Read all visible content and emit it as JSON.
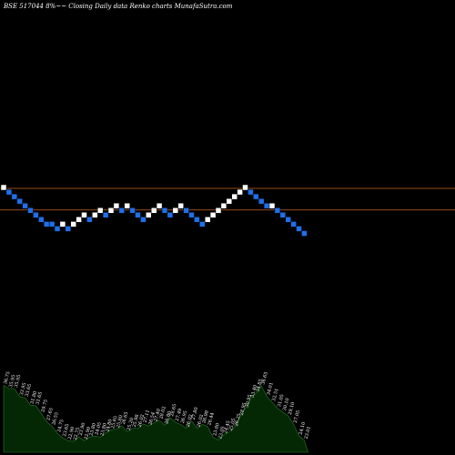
{
  "title": "BSE 517044  8%~~  Closing Daily data  Renko  charts MunafaSutra.com",
  "colors": {
    "background": "#000000",
    "up_brick": "#ffffff",
    "down_brick": "#1e6fe8",
    "line_upper": "#c8641e",
    "line_lower": "#c86428",
    "volume_fill": "#042804",
    "volume_stroke": "#2a7a2a"
  },
  "chart_data": {
    "type": "renko",
    "bricks": [
      {
        "dir": "up",
        "level": 22
      },
      {
        "dir": "down",
        "level": 21
      },
      {
        "dir": "down",
        "level": 20
      },
      {
        "dir": "down",
        "level": 19
      },
      {
        "dir": "down",
        "level": 18
      },
      {
        "dir": "down",
        "level": 17
      },
      {
        "dir": "down",
        "level": 16
      },
      {
        "dir": "down",
        "level": 15
      },
      {
        "dir": "down",
        "level": 14
      },
      {
        "dir": "down",
        "level": 14
      },
      {
        "dir": "down",
        "level": 13
      },
      {
        "dir": "up",
        "level": 14
      },
      {
        "dir": "down",
        "level": 13
      },
      {
        "dir": "up",
        "level": 14
      },
      {
        "dir": "up",
        "level": 15
      },
      {
        "dir": "up",
        "level": 16
      },
      {
        "dir": "down",
        "level": 15
      },
      {
        "dir": "up",
        "level": 16
      },
      {
        "dir": "up",
        "level": 17
      },
      {
        "dir": "down",
        "level": 16
      },
      {
        "dir": "up",
        "level": 17
      },
      {
        "dir": "up",
        "level": 18
      },
      {
        "dir": "down",
        "level": 17
      },
      {
        "dir": "up",
        "level": 18
      },
      {
        "dir": "down",
        "level": 17
      },
      {
        "dir": "down",
        "level": 16
      },
      {
        "dir": "down",
        "level": 15
      },
      {
        "dir": "up",
        "level": 16
      },
      {
        "dir": "up",
        "level": 17
      },
      {
        "dir": "up",
        "level": 18
      },
      {
        "dir": "down",
        "level": 17
      },
      {
        "dir": "down",
        "level": 16
      },
      {
        "dir": "up",
        "level": 17
      },
      {
        "dir": "up",
        "level": 18
      },
      {
        "dir": "down",
        "level": 17
      },
      {
        "dir": "down",
        "level": 16
      },
      {
        "dir": "down",
        "level": 15
      },
      {
        "dir": "down",
        "level": 14
      },
      {
        "dir": "up",
        "level": 15
      },
      {
        "dir": "up",
        "level": 16
      },
      {
        "dir": "up",
        "level": 17
      },
      {
        "dir": "up",
        "level": 18
      },
      {
        "dir": "up",
        "level": 19
      },
      {
        "dir": "up",
        "level": 20
      },
      {
        "dir": "up",
        "level": 21
      },
      {
        "dir": "up",
        "level": 22
      },
      {
        "dir": "down",
        "level": 21
      },
      {
        "dir": "down",
        "level": 20
      },
      {
        "dir": "down",
        "level": 19
      },
      {
        "dir": "down",
        "level": 18
      },
      {
        "dir": "up",
        "level": 18
      },
      {
        "dir": "down",
        "level": 17
      },
      {
        "dir": "down",
        "level": 16
      },
      {
        "dir": "down",
        "level": 15
      },
      {
        "dir": "down",
        "level": 14
      },
      {
        "dir": "down",
        "level": 13
      },
      {
        "dir": "down",
        "level": 12
      }
    ],
    "reference_lines": [
      {
        "level": 21.8
      },
      {
        "level": 17.1
      }
    ],
    "volume_labels": [
      "36.75",
      "35.95",
      "35.95",
      "33.95",
      "33.65",
      "31.80",
      "31.65",
      "29.75",
      "27.65",
      "26.55",
      "24.75",
      "23.65",
      "22.90",
      "22.75",
      "23.90",
      "22.90",
      "23.80",
      "24.05",
      "23.80",
      "24.80",
      "25.65",
      "25.80",
      "26.65",
      "25.20",
      "25.98",
      "26.02",
      "27.11",
      "26.54",
      "27.40",
      "28.02",
      "26.80",
      "28.65",
      "27.49",
      "26.95",
      "26.02",
      "27.80",
      "26.02",
      "26.98",
      "26.44",
      "23.80",
      "23.05",
      "24.45",
      "25.05",
      "26.25",
      "28.95",
      "30.95",
      "33.40",
      "34.85",
      "36.65",
      "34.01",
      "32.51",
      "31.05",
      "30.10",
      "29.10",
      "27.05",
      "24.10",
      "23.01"
    ]
  }
}
